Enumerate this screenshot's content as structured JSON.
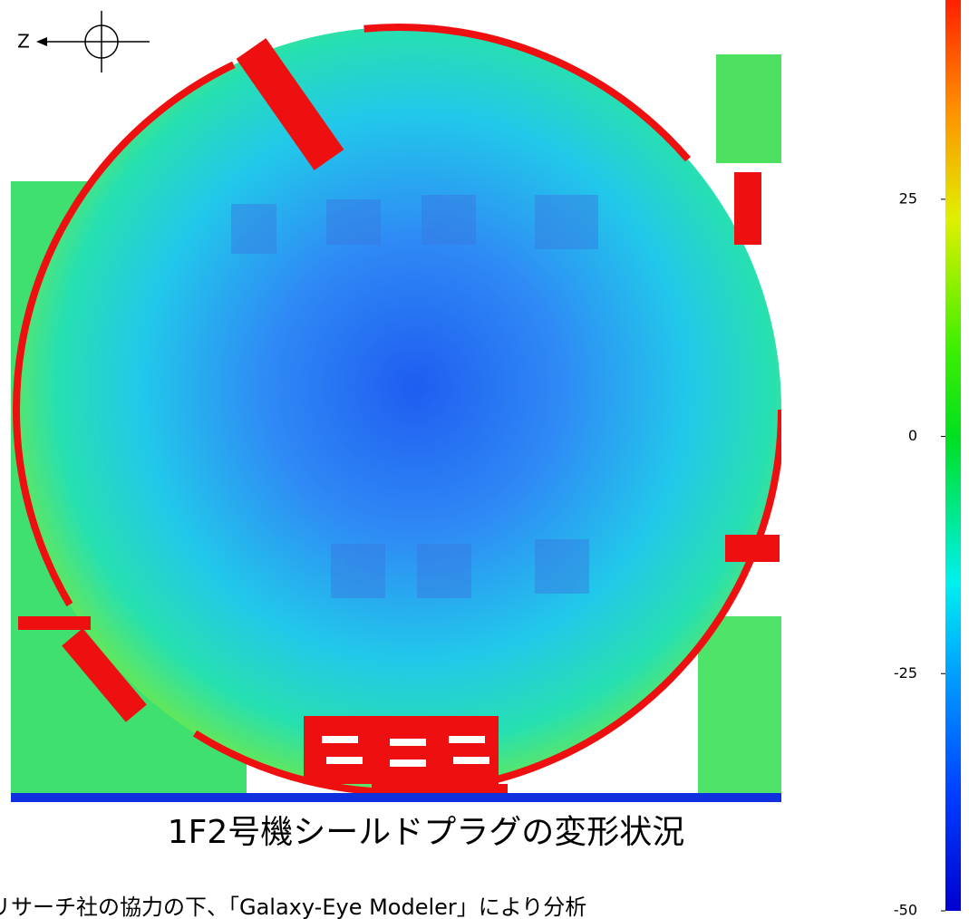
{
  "figure": {
    "compass_label": "Z",
    "caption": "1F2号機シールドプラグの変形状況",
    "credit": "リサーチ社の協力の下、「Galaxy-Eye Modeler」により分析",
    "colorbar": {
      "clim": [
        -50,
        46
      ],
      "ticks": [
        25,
        0,
        -25,
        -50
      ]
    }
  }
}
